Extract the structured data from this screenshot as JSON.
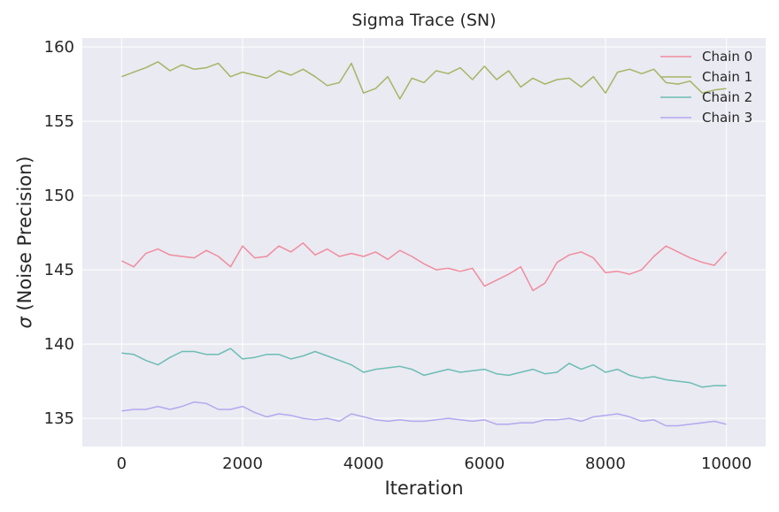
{
  "chart_data": {
    "type": "line",
    "title": "Sigma Trace (SN)",
    "xlabel": "Iteration",
    "ylabel_symbol": "σ",
    "ylabel_rest": " (Noise Precision)",
    "xlim": [
      -650,
      10650
    ],
    "ylim": [
      133.1,
      160.6
    ],
    "xticks": [
      0,
      2000,
      4000,
      6000,
      8000,
      10000
    ],
    "yticks": [
      135,
      140,
      145,
      150,
      155,
      160
    ],
    "grid": true,
    "legend_position": "top-right",
    "background_color": "#eaeaf2",
    "grid_color": "#ffffff",
    "x": [
      0,
      200,
      400,
      600,
      800,
      1000,
      1200,
      1400,
      1600,
      1800,
      2000,
      2200,
      2400,
      2600,
      2800,
      3000,
      3200,
      3400,
      3600,
      3800,
      4000,
      4200,
      4400,
      4600,
      4800,
      5000,
      5200,
      5400,
      5600,
      5800,
      6000,
      6200,
      6400,
      6600,
      6800,
      7000,
      7200,
      7400,
      7600,
      7800,
      8000,
      8200,
      8400,
      8600,
      8800,
      9000,
      9200,
      9400,
      9600,
      9800,
      10000
    ],
    "series": [
      {
        "name": "Chain 0",
        "color": "#f08c9e",
        "values": [
          145.6,
          145.2,
          146.1,
          146.4,
          146.0,
          145.9,
          145.8,
          146.3,
          145.9,
          145.2,
          146.6,
          145.8,
          145.9,
          146.6,
          146.2,
          146.8,
          146.0,
          146.4,
          145.9,
          146.1,
          145.9,
          146.2,
          145.7,
          146.3,
          145.9,
          145.4,
          145.0,
          145.1,
          144.9,
          145.1,
          143.9,
          144.3,
          144.7,
          145.2,
          143.6,
          144.1,
          145.5,
          146.0,
          146.2,
          145.8,
          144.8,
          144.9,
          144.7,
          145.0,
          145.9,
          146.6,
          146.2,
          145.8,
          145.5,
          145.3,
          146.2
        ]
      },
      {
        "name": "Chain 1",
        "color": "#a6b465",
        "values": [
          158.0,
          158.3,
          158.6,
          159.0,
          158.4,
          158.8,
          158.5,
          158.6,
          158.9,
          158.0,
          158.3,
          158.1,
          157.9,
          158.4,
          158.1,
          158.5,
          158.0,
          157.4,
          157.6,
          158.9,
          156.9,
          157.2,
          158.0,
          156.5,
          157.9,
          157.6,
          158.4,
          158.2,
          158.6,
          157.8,
          158.7,
          157.8,
          158.4,
          157.3,
          157.9,
          157.5,
          157.8,
          157.9,
          157.3,
          158.0,
          156.9,
          158.3,
          158.5,
          158.2,
          158.5,
          157.6,
          157.5,
          157.7,
          156.9,
          157.1,
          157.2
        ]
      },
      {
        "name": "Chain 2",
        "color": "#6cbdb4",
        "values": [
          139.4,
          139.3,
          138.9,
          138.6,
          139.1,
          139.5,
          139.5,
          139.3,
          139.3,
          139.7,
          139.0,
          139.1,
          139.3,
          139.3,
          139.0,
          139.2,
          139.5,
          139.2,
          138.9,
          138.6,
          138.1,
          138.3,
          138.4,
          138.5,
          138.3,
          137.9,
          138.1,
          138.3,
          138.1,
          138.2,
          138.3,
          138.0,
          137.9,
          138.1,
          138.3,
          138.0,
          138.1,
          138.7,
          138.3,
          138.6,
          138.1,
          138.3,
          137.9,
          137.7,
          137.8,
          137.6,
          137.5,
          137.4,
          137.1,
          137.2,
          137.2
        ]
      },
      {
        "name": "Chain 3",
        "color": "#b4a8ee",
        "values": [
          135.5,
          135.6,
          135.6,
          135.8,
          135.6,
          135.8,
          136.1,
          136.0,
          135.6,
          135.6,
          135.8,
          135.4,
          135.1,
          135.3,
          135.2,
          135.0,
          134.9,
          135.0,
          134.8,
          135.3,
          135.1,
          134.9,
          134.8,
          134.9,
          134.8,
          134.8,
          134.9,
          135.0,
          134.9,
          134.8,
          134.9,
          134.6,
          134.6,
          134.7,
          134.7,
          134.9,
          134.9,
          135.0,
          134.8,
          135.1,
          135.2,
          135.3,
          135.1,
          134.8,
          134.9,
          134.5,
          134.5,
          134.6,
          134.7,
          134.8,
          134.6
        ]
      }
    ]
  }
}
